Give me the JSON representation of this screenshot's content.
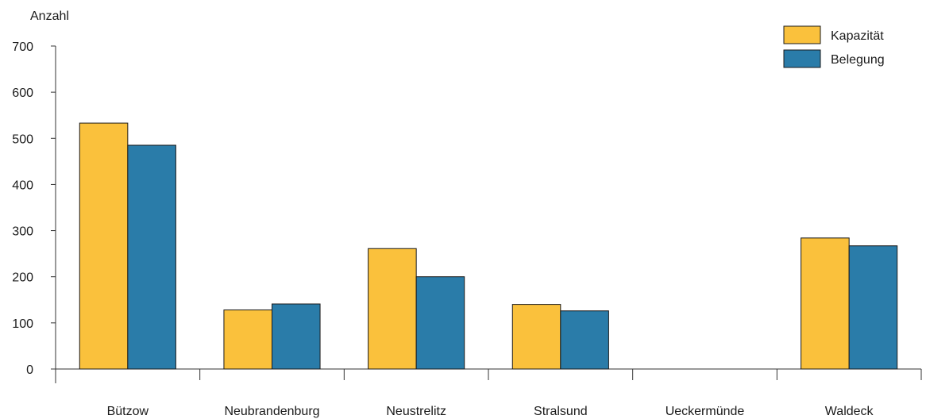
{
  "chart_data": {
    "type": "bar",
    "ylabel": "Anzahl",
    "ylim": [
      0,
      700
    ],
    "yticks": [
      0,
      100,
      200,
      300,
      400,
      500,
      600,
      700
    ],
    "categories": [
      "Bützow",
      "Neubrandenburg",
      "Neustrelitz",
      "Stralsund",
      "Ueckermünde",
      "Waldeck"
    ],
    "series": [
      {
        "name": "Kapazität",
        "color": "#fac13c",
        "values": [
          533,
          128,
          261,
          140,
          0,
          284
        ]
      },
      {
        "name": "Belegung",
        "color": "#2a7ca9",
        "values": [
          485,
          141,
          200,
          126,
          0,
          267
        ]
      }
    ],
    "legend_position": "top-right",
    "grid": false
  }
}
